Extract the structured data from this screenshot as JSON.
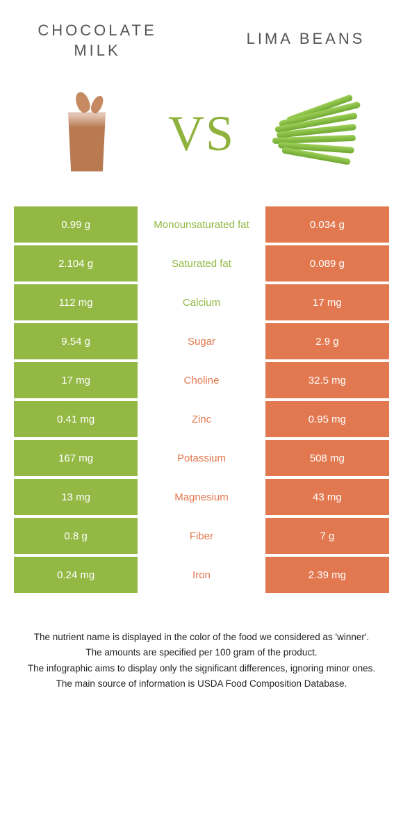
{
  "colors": {
    "green": "#93b844",
    "orange": "#e2784f",
    "vs": "#8fb23c"
  },
  "left": {
    "title": "CHOCOLATE MILK"
  },
  "right": {
    "title": "LIMA BEANS"
  },
  "vs": "VS",
  "rows": [
    {
      "label": "Monounsaturated fat",
      "left": "0.99 g",
      "right": "0.034 g",
      "winner": "green"
    },
    {
      "label": "Saturated fat",
      "left": "2.104 g",
      "right": "0.089 g",
      "winner": "green"
    },
    {
      "label": "Calcium",
      "left": "112 mg",
      "right": "17 mg",
      "winner": "green"
    },
    {
      "label": "Sugar",
      "left": "9.54 g",
      "right": "2.9 g",
      "winner": "orange"
    },
    {
      "label": "Choline",
      "left": "17 mg",
      "right": "32.5 mg",
      "winner": "orange"
    },
    {
      "label": "Zinc",
      "left": "0.41 mg",
      "right": "0.95 mg",
      "winner": "orange"
    },
    {
      "label": "Potassium",
      "left": "167 mg",
      "right": "508 mg",
      "winner": "orange"
    },
    {
      "label": "Magnesium",
      "left": "13 mg",
      "right": "43 mg",
      "winner": "orange"
    },
    {
      "label": "Fiber",
      "left": "0.8 g",
      "right": "7 g",
      "winner": "orange"
    },
    {
      "label": "Iron",
      "left": "0.24 mg",
      "right": "2.39 mg",
      "winner": "orange"
    }
  ],
  "footnotes": [
    "The nutrient name is displayed in the color of the food we considered as 'winner'.",
    "The amounts are specified per 100 gram of the product.",
    "The infographic aims to display only the significant differences, ignoring minor ones.",
    "The main source of information is USDA Food Composition Database."
  ]
}
